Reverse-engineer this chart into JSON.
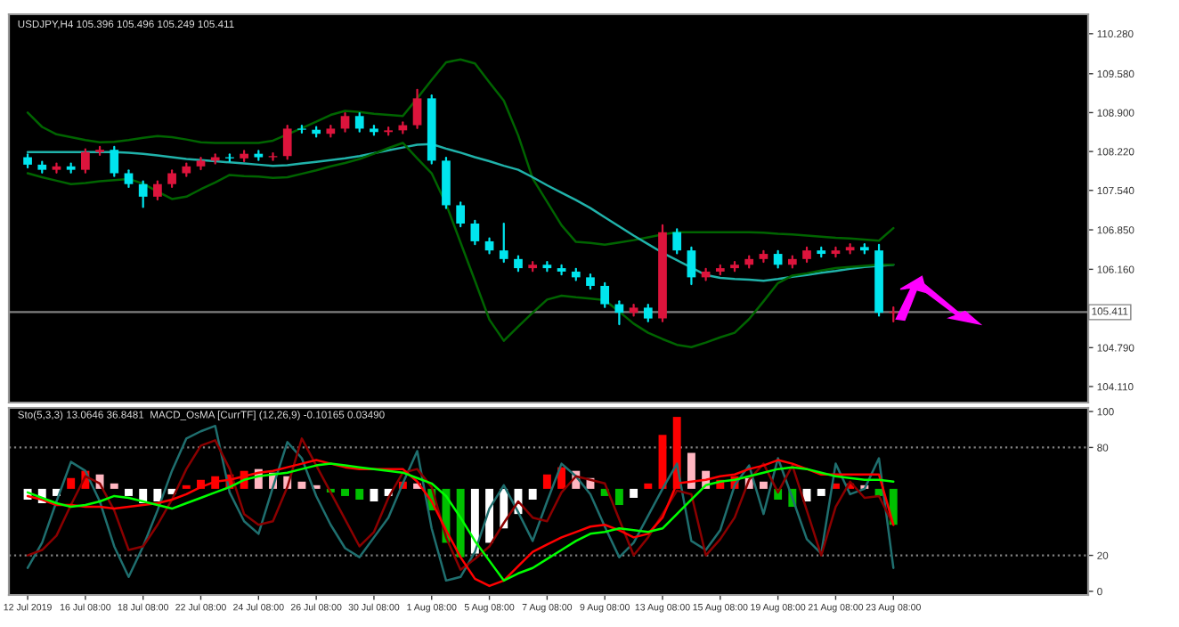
{
  "chart_data": [
    {
      "type": "candlestick",
      "title": "USDJPY,H4 105.396 105.496 105.249 105.411",
      "categories": [
        null,
        null,
        null,
        null,
        null,
        null,
        null,
        null,
        null,
        null,
        null,
        null,
        null,
        null,
        null,
        null,
        null,
        null,
        null,
        null,
        null,
        null,
        null,
        null,
        null,
        null,
        null,
        null,
        null,
        null,
        null,
        null,
        null,
        null,
        null,
        null,
        null,
        null,
        null,
        null,
        null,
        null,
        null,
        null,
        null,
        null,
        null,
        null,
        null,
        null,
        null,
        null,
        null,
        null,
        null,
        null,
        null,
        null,
        null,
        null,
        null
      ],
      "ohlc": [
        [
          108.12,
          108.17,
          107.94,
          107.99
        ],
        [
          107.99,
          108.04,
          107.85,
          107.9
        ],
        [
          107.9,
          108.01,
          107.85,
          107.96
        ],
        [
          107.96,
          108.01,
          107.85,
          107.9
        ],
        [
          107.9,
          108.26,
          107.85,
          108.21
        ],
        [
          108.21,
          108.3,
          108.16,
          108.25
        ],
        [
          108.25,
          108.3,
          107.79,
          107.84
        ],
        [
          107.84,
          107.89,
          107.6,
          107.65
        ],
        [
          107.65,
          107.7,
          107.25,
          107.43
        ],
        [
          107.43,
          107.7,
          107.38,
          107.65
        ],
        [
          107.65,
          107.89,
          107.6,
          107.84
        ],
        [
          107.84,
          108.01,
          107.79,
          107.96
        ],
        [
          107.96,
          108.11,
          107.91,
          108.06
        ],
        [
          108.06,
          108.17,
          108.01,
          108.12
        ],
        [
          108.12,
          108.17,
          108.05,
          108.1
        ],
        [
          108.1,
          108.23,
          108.05,
          108.18
        ],
        [
          108.18,
          108.23,
          108.07,
          108.12
        ],
        [
          108.12,
          108.19,
          108.07,
          108.14
        ],
        [
          108.14,
          108.67,
          108.09,
          108.62
        ],
        [
          108.62,
          108.67,
          108.55,
          108.6
        ],
        [
          108.6,
          108.65,
          108.48,
          108.53
        ],
        [
          108.53,
          108.67,
          108.48,
          108.62
        ],
        [
          108.62,
          108.89,
          108.57,
          108.84
        ],
        [
          108.84,
          108.89,
          108.57,
          108.62
        ],
        [
          108.62,
          108.67,
          108.51,
          108.56
        ],
        [
          108.56,
          108.64,
          108.51,
          108.59
        ],
        [
          108.59,
          108.73,
          108.54,
          108.68
        ],
        [
          108.68,
          109.3,
          108.63,
          109.15
        ],
        [
          109.15,
          109.2,
          108.01,
          108.06
        ],
        [
          108.06,
          108.11,
          107.23,
          107.28
        ],
        [
          107.28,
          107.33,
          106.91,
          106.96
        ],
        [
          106.96,
          107.01,
          106.6,
          106.65
        ],
        [
          106.65,
          106.7,
          106.44,
          106.49
        ],
        [
          106.49,
          106.96,
          106.29,
          106.34
        ],
        [
          106.34,
          106.39,
          106.13,
          106.18
        ],
        [
          106.18,
          106.29,
          106.13,
          106.24
        ],
        [
          106.24,
          106.29,
          106.13,
          106.18
        ],
        [
          106.18,
          106.23,
          106.07,
          106.12
        ],
        [
          106.12,
          106.17,
          105.97,
          106.02
        ],
        [
          106.02,
          106.07,
          105.82,
          105.87
        ],
        [
          105.87,
          105.92,
          105.5,
          105.55
        ],
        [
          105.55,
          105.6,
          105.2,
          105.4
        ],
        [
          105.4,
          105.54,
          105.35,
          105.49
        ],
        [
          105.49,
          105.54,
          105.25,
          105.3
        ],
        [
          105.3,
          106.93,
          105.25,
          106.81
        ],
        [
          106.81,
          106.86,
          106.44,
          106.49
        ],
        [
          106.49,
          106.54,
          105.9,
          106.02
        ],
        [
          106.02,
          106.17,
          105.97,
          106.12
        ],
        [
          106.12,
          106.23,
          106.07,
          106.18
        ],
        [
          106.18,
          106.29,
          106.13,
          106.24
        ],
        [
          106.24,
          106.39,
          106.19,
          106.34
        ],
        [
          106.34,
          106.48,
          106.29,
          106.43
        ],
        [
          106.43,
          106.48,
          106.19,
          106.24
        ],
        [
          106.24,
          106.39,
          106.19,
          106.34
        ],
        [
          106.34,
          106.54,
          106.29,
          106.49
        ],
        [
          106.49,
          106.54,
          106.38,
          106.43
        ],
        [
          106.43,
          106.54,
          106.38,
          106.49
        ],
        [
          106.49,
          106.6,
          106.44,
          106.55
        ],
        [
          106.55,
          106.6,
          106.44,
          106.49
        ],
        [
          106.49,
          106.59,
          105.35,
          105.4
        ],
        [
          105.396,
          105.496,
          105.249,
          105.411
        ]
      ],
      "colors": [
        "#00e5ee",
        "#00e5ee",
        "#dc143c",
        "#00e5ee",
        "#dc143c",
        "#dc143c",
        "#00e5ee",
        "#00e5ee",
        "#00e5ee",
        "#dc143c",
        "#dc143c",
        "#dc143c",
        "#dc143c",
        "#dc143c",
        "#00e5ee",
        "#dc143c",
        "#00e5ee",
        "#dc143c",
        "#dc143c",
        "#00e5ee",
        "#00e5ee",
        "#dc143c",
        "#dc143c",
        "#00e5ee",
        "#00e5ee",
        "#dc143c",
        "#dc143c",
        "#dc143c",
        "#00e5ee",
        "#00e5ee",
        "#00e5ee",
        "#00e5ee",
        "#00e5ee",
        "#00e5ee",
        "#00e5ee",
        "#dc143c",
        "#00e5ee",
        "#00e5ee",
        "#00e5ee",
        "#00e5ee",
        "#00e5ee",
        "#00e5ee",
        "#dc143c",
        "#00e5ee",
        "#dc143c",
        "#00e5ee",
        "#00e5ee",
        "#dc143c",
        "#dc143c",
        "#dc143c",
        "#dc143c",
        "#dc143c",
        "#00e5ee",
        "#dc143c",
        "#dc143c",
        "#00e5ee",
        "#dc143c",
        "#dc143c",
        "#00e5ee",
        "#00e5ee",
        "#dc143c"
      ],
      "series": [
        {
          "type": "line",
          "color": "#006400",
          "values": [
            108.9,
            108.65,
            108.52,
            108.47,
            108.42,
            108.38,
            108.39,
            108.42,
            108.46,
            108.49,
            108.47,
            108.43,
            108.38,
            108.37,
            108.37,
            108.37,
            108.37,
            108.41,
            108.52,
            108.63,
            108.74,
            108.86,
            108.93,
            108.91,
            108.88,
            108.86,
            108.84,
            109.15,
            109.47,
            109.78,
            109.83,
            109.76,
            109.43,
            109.11,
            108.5,
            107.75,
            107.34,
            106.93,
            106.64,
            106.62,
            106.59,
            106.63,
            106.67,
            106.72,
            106.77,
            106.81,
            106.81,
            106.81,
            106.81,
            106.81,
            106.81,
            106.8,
            106.78,
            106.77,
            106.75,
            106.73,
            106.71,
            106.7,
            106.68,
            106.66,
            106.88
          ]
        },
        {
          "type": "line",
          "color": "#20b2aa",
          "values": [
            108.21,
            108.21,
            108.21,
            108.21,
            108.21,
            108.21,
            108.21,
            108.2,
            108.18,
            108.15,
            108.12,
            108.09,
            108.07,
            108.05,
            108.03,
            108.01,
            107.99,
            107.97,
            107.98,
            108.01,
            108.04,
            108.07,
            108.1,
            108.14,
            108.19,
            108.24,
            108.29,
            108.34,
            108.35,
            108.27,
            108.2,
            108.12,
            108.05,
            107.97,
            107.9,
            107.77,
            107.63,
            107.5,
            107.37,
            107.23,
            107.07,
            106.91,
            106.75,
            106.6,
            106.45,
            106.32,
            106.19,
            106.06,
            106.01,
            105.99,
            105.98,
            105.96,
            105.99,
            106.03,
            106.06,
            106.1,
            106.13,
            106.17,
            106.2,
            106.22,
            106.24
          ]
        },
        {
          "type": "line",
          "color": "#006400",
          "values": [
            107.84,
            107.77,
            107.71,
            107.65,
            107.67,
            107.7,
            107.72,
            107.74,
            107.66,
            107.52,
            107.39,
            107.43,
            107.56,
            107.68,
            107.81,
            107.79,
            107.78,
            107.76,
            107.77,
            107.83,
            107.89,
            107.96,
            108.02,
            108.09,
            108.18,
            108.28,
            108.37,
            108.1,
            107.84,
            107.3,
            106.63,
            105.96,
            105.28,
            104.91,
            105.16,
            105.4,
            105.63,
            105.7,
            105.67,
            105.65,
            105.62,
            105.42,
            105.21,
            105.05,
            104.94,
            104.84,
            104.8,
            104.88,
            104.97,
            105.05,
            105.29,
            105.6,
            105.92,
            106.05,
            106.09,
            106.14,
            106.18,
            106.2,
            106.22,
            106.24,
            106.24
          ]
        }
      ],
      "ylim": [
        103.83,
        110.62
      ],
      "yticks": [
        {
          "value": 104.11,
          "label": "104.110"
        },
        {
          "value": 104.79,
          "label": "104.790"
        },
        {
          "value": 106.16,
          "label": "106.160"
        },
        {
          "value": 106.85,
          "label": "106.850"
        },
        {
          "value": 107.54,
          "label": "107.540"
        },
        {
          "value": 108.22,
          "label": "108.220"
        },
        {
          "value": 108.9,
          "label": "108.900"
        },
        {
          "value": 109.58,
          "label": "109.580"
        },
        {
          "value": 110.28,
          "label": "110.280"
        }
      ],
      "tick_labels": "y",
      "ref_lines": [
        {
          "axis": "y",
          "value": 105.411,
          "label": "105.411",
          "color": "#808080",
          "line_style": "solid"
        }
      ]
    },
    {
      "type": "line",
      "title": "Sto(5,3,3) 13.0646 36.8481  MACD_OsMA [CurrTF] (12,26,9) -0.10165 0.03490",
      "categories": [
        "12 Jul 2019",
        null,
        null,
        null,
        "16 Jul 08:00",
        null,
        null,
        null,
        "18 Jul 08:00",
        null,
        null,
        null,
        "22 Jul 08:00",
        null,
        null,
        null,
        "24 Jul 08:00",
        null,
        null,
        null,
        "26 Jul 08:00",
        null,
        null,
        null,
        "30 Jul 08:00",
        null,
        null,
        null,
        "1 Aug 08:00",
        null,
        null,
        null,
        "5 Aug 08:00",
        null,
        null,
        null,
        "7 Aug 08:00",
        null,
        null,
        null,
        "9 Aug 08:00",
        null,
        null,
        null,
        "13 Aug 08:00",
        null,
        null,
        null,
        "15 Aug 08:00",
        null,
        null,
        null,
        "19 Aug 08:00",
        null,
        null,
        null,
        "21 Aug 08:00",
        null,
        null,
        null,
        "23 Aug 08:00"
      ],
      "series": [
        {
          "type": "bar",
          "base": [
            57,
            57,
            57,
            57,
            57,
            57,
            57,
            57,
            57,
            57,
            57,
            57,
            57,
            57,
            57,
            57,
            57,
            57,
            57,
            57,
            57,
            57,
            57,
            57,
            57,
            57,
            57,
            57,
            57,
            57,
            57,
            57,
            57,
            57,
            57,
            57,
            57,
            57,
            57,
            57,
            57,
            57,
            57,
            57,
            57,
            57,
            57,
            57,
            57,
            57,
            57,
            57,
            57,
            57,
            57,
            57,
            57,
            57,
            57,
            57,
            57
          ],
          "values": [
            -6,
            -8,
            -4,
            6,
            10,
            8,
            3,
            -4,
            -8,
            -7,
            -3,
            2,
            5,
            7,
            8,
            10,
            11,
            9,
            7,
            4,
            2,
            -2,
            -4,
            -6,
            -7,
            -4,
            4,
            3,
            -12,
            -30,
            -38,
            -36,
            -30,
            -22,
            -14,
            -6,
            8,
            12,
            10,
            6,
            -4,
            -9,
            -5,
            3,
            30,
            40,
            20,
            10,
            5,
            7,
            6,
            4,
            -6,
            -10,
            -7,
            -4,
            3,
            3,
            2,
            -4,
            -20
          ],
          "colors": [
            "#ffffff",
            "#ffffff",
            "#ffffff",
            "#ff0000",
            "#ff0000",
            "#ffb6c1",
            "#ffb6c1",
            "#ffffff",
            "#ffffff",
            "#ffffff",
            "#ffffff",
            "#ff0000",
            "#ff0000",
            "#ff0000",
            "#ff0000",
            "#ff0000",
            "#ffb6c1",
            "#ffb6c1",
            "#ffb6c1",
            "#ffb6c1",
            "#ffb6c1",
            "#00c000",
            "#00c000",
            "#00c000",
            "#ffffff",
            "#ffffff",
            "#ff0000",
            "#ffb6c1",
            "#00c000",
            "#00c000",
            "#00c000",
            "#ffffff",
            "#ffffff",
            "#ffffff",
            "#ffffff",
            "#ffffff",
            "#ff0000",
            "#ff0000",
            "#ffb6c1",
            "#ffb6c1",
            "#00c000",
            "#00c000",
            "#ffffff",
            "#ff0000",
            "#ff0000",
            "#ff0000",
            "#ffb6c1",
            "#ffb6c1",
            "#ff0000",
            "#ff0000",
            "#ffb6c1",
            "#ffb6c1",
            "#00c000",
            "#00c000",
            "#ffffff",
            "#ffffff",
            "#ff0000",
            "#ff0000",
            "#ffb6c1",
            "#00c000",
            "#00c000"
          ]
        },
        {
          "type": "line",
          "color": "#1f6f6f",
          "values": [
            13,
            27,
            50,
            72,
            67,
            50,
            25,
            8,
            25,
            45,
            67,
            85,
            89,
            92,
            55,
            39,
            32,
            58,
            83,
            74,
            53,
            37,
            24,
            19,
            30,
            41,
            60,
            78,
            35,
            6,
            8,
            22,
            46,
            59,
            44,
            28,
            50,
            71,
            64,
            54,
            36,
            19,
            27,
            42,
            57,
            71,
            28,
            23,
            34,
            59,
            70,
            43,
            74,
            52,
            29,
            21,
            71,
            54,
            57,
            74,
            13
          ]
        },
        {
          "type": "line",
          "color": "#8b0000",
          "values": [
            20,
            23,
            31,
            48,
            64,
            60,
            45,
            23,
            25,
            37,
            51,
            68,
            81,
            84,
            68,
            43,
            37,
            39,
            58,
            85,
            70,
            55,
            40,
            25,
            33,
            52,
            66,
            68,
            58,
            30,
            12,
            18,
            25,
            38,
            50,
            41,
            39,
            55,
            64,
            62,
            60,
            40,
            20,
            30,
            43,
            56,
            54,
            20,
            29,
            41,
            62,
            71,
            55,
            70,
            45,
            20,
            47,
            61,
            52,
            53,
            37
          ]
        },
        {
          "type": "line",
          "color": "#ff0000",
          "values": [
            53,
            51,
            48,
            48,
            47,
            47,
            46,
            47,
            48,
            49,
            51,
            54,
            58,
            61,
            62,
            64,
            66,
            67,
            69,
            71,
            73,
            71,
            69,
            68,
            68,
            68,
            68,
            61,
            50,
            34,
            19,
            7,
            3,
            6,
            14,
            22,
            26,
            30,
            33,
            36,
            37,
            34,
            30,
            32,
            41,
            60,
            61,
            62,
            64,
            65,
            68,
            70,
            73,
            71,
            68,
            65,
            65,
            65,
            65,
            65,
            37
          ]
        },
        {
          "type": "line",
          "color": "#00ff00",
          "values": [
            55,
            52,
            49,
            47,
            48,
            50,
            53,
            52,
            50,
            48,
            46,
            49,
            52,
            55,
            58,
            62,
            64,
            65,
            66,
            68,
            70,
            71,
            70,
            69,
            68,
            67,
            66,
            63,
            60,
            53,
            41,
            28,
            17,
            6,
            10,
            13,
            18,
            23,
            28,
            32,
            33,
            35,
            34,
            33,
            35,
            43,
            51,
            59,
            61,
            62,
            64,
            66,
            68,
            69,
            68,
            66,
            64,
            63,
            62,
            62,
            61
          ]
        }
      ],
      "ylim": [
        -2,
        102
      ],
      "yticks": [
        0,
        20,
        80,
        100
      ],
      "ref_lines": [
        {
          "axis": "y",
          "value": 20,
          "label": null,
          "color": "#808080",
          "line_style": "dotted"
        },
        {
          "axis": "y",
          "value": 80,
          "label": null,
          "color": "#808080",
          "line_style": "dotted"
        }
      ]
    }
  ]
}
